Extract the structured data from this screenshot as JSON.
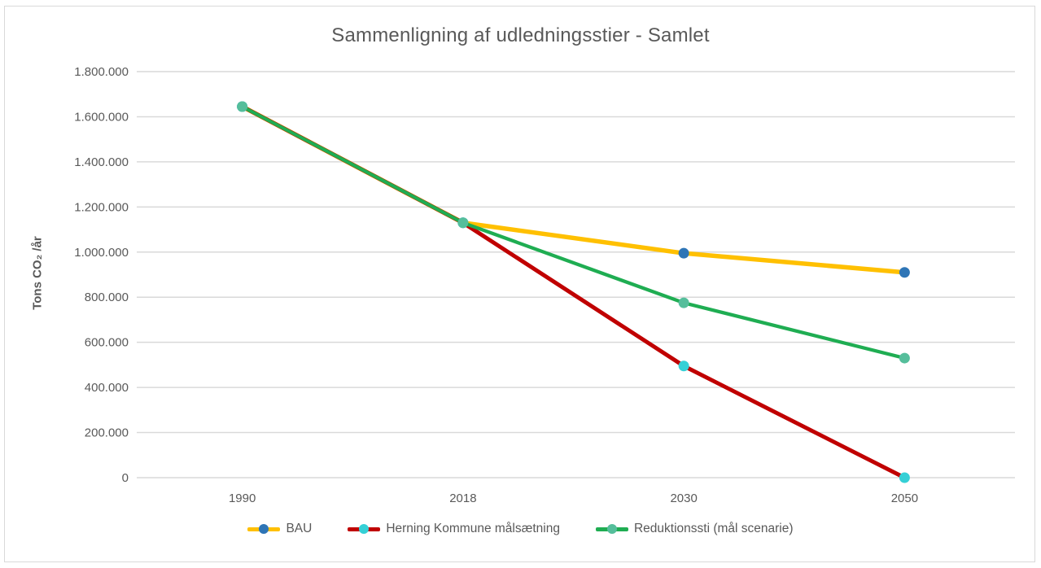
{
  "chart_data": {
    "type": "line",
    "title": "Sammenligning af udledningsstier - Samlet",
    "xlabel": "",
    "ylabel": "Tons CO₂ /år",
    "categories": [
      "1990",
      "2018",
      "2030",
      "2050"
    ],
    "series": [
      {
        "name": "BAU",
        "values": [
          1645000,
          1130000,
          995000,
          910000
        ],
        "line_color": "#FFC000",
        "marker_color": "#2E75B6"
      },
      {
        "name": "Herning Kommune målsætning",
        "values": [
          1645000,
          1130000,
          495000,
          0
        ],
        "line_color": "#C00000",
        "marker_color": "#35D0D6"
      },
      {
        "name": "Reduktionssti (mål scenarie)",
        "values": [
          1645000,
          1130000,
          775000,
          530000
        ],
        "line_color": "#1FAD52",
        "marker_color": "#55BE9B"
      }
    ],
    "ylim": [
      0,
      1800000
    ],
    "ytick_step": 200000,
    "ytick_labels": [
      "0",
      "200.000",
      "400.000",
      "600.000",
      "800.000",
      "1.000.000",
      "1.200.000",
      "1.400.000",
      "1.600.000",
      "1.800.000"
    ],
    "grid": true,
    "grid_color": "#D9D9D9",
    "axis_text_color": "#595959",
    "legend_position": "bottom"
  }
}
